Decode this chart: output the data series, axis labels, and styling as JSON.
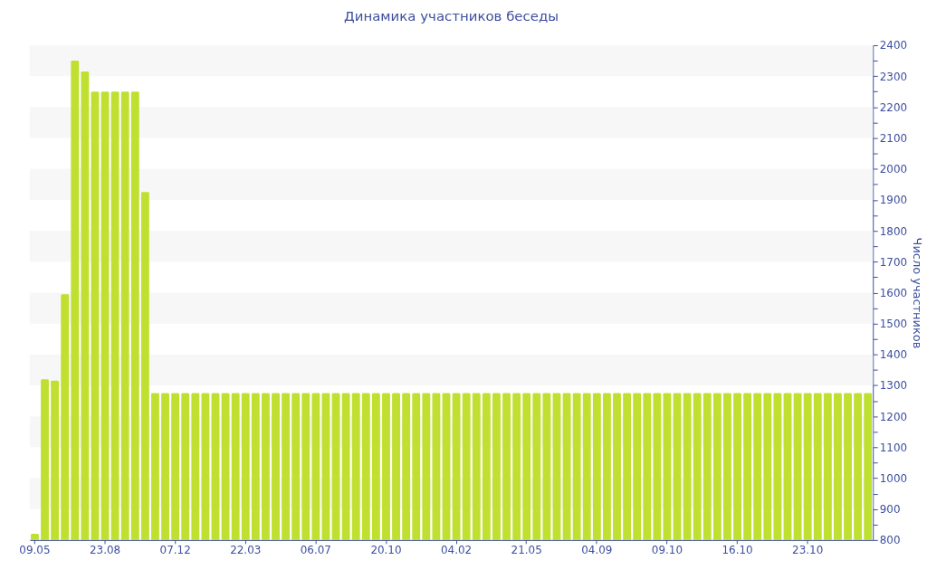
{
  "chart_data": {
    "type": "bar",
    "title": "Динамика участников беседы",
    "ylabel": "Число участников",
    "categories": [
      "09.05",
      null,
      null,
      null,
      null,
      null,
      null,
      "23.08",
      null,
      null,
      null,
      null,
      null,
      null,
      "07.12",
      null,
      null,
      null,
      null,
      null,
      null,
      "22.03",
      null,
      null,
      null,
      null,
      null,
      null,
      "06.07",
      null,
      null,
      null,
      null,
      null,
      null,
      "20.10",
      null,
      null,
      null,
      null,
      null,
      null,
      "04.02",
      null,
      null,
      null,
      null,
      null,
      null,
      "21.05",
      null,
      null,
      null,
      null,
      null,
      null,
      "04.09",
      null,
      null,
      null,
      null,
      null,
      null,
      "09.10",
      null,
      null,
      null,
      null,
      null,
      null,
      "16.10",
      null,
      null,
      null,
      null,
      null,
      null,
      "23.10",
      null,
      null,
      null,
      null,
      null,
      null
    ],
    "values": [
      820,
      1320,
      1315,
      1595,
      2350,
      2315,
      2250,
      2250,
      2250,
      2250,
      2250,
      1925,
      1275,
      1275,
      1275,
      1275,
      1275,
      1275,
      1275,
      1275,
      1275,
      1275,
      1275,
      1275,
      1275,
      1275,
      1275,
      1275,
      1275,
      1275,
      1275,
      1275,
      1275,
      1275,
      1275,
      1275,
      1275,
      1275,
      1275,
      1275,
      1275,
      1275,
      1275,
      1275,
      1275,
      1275,
      1275,
      1275,
      1275,
      1275,
      1275,
      1275,
      1275,
      1275,
      1275,
      1275,
      1275,
      1275,
      1275,
      1275,
      1275,
      1275,
      1275,
      1275,
      1275,
      1275,
      1275,
      1275,
      1275,
      1275,
      1275,
      1275,
      1275,
      1275,
      1275,
      1275,
      1275,
      1275,
      1275,
      1275,
      1275,
      1275,
      1275,
      1275
    ],
    "color": "#bfe030",
    "ylim": [
      800,
      2400
    ],
    "yticks": [
      800,
      {
        "value": 850,
        "label": null
      },
      900,
      {
        "value": 950,
        "label": null
      },
      1000,
      {
        "value": 1050,
        "label": null
      },
      1100,
      {
        "value": 1150,
        "label": null
      },
      1200,
      {
        "value": 1250,
        "label": null
      },
      1300,
      {
        "value": 1350,
        "label": null
      },
      1400,
      {
        "value": 1450,
        "label": null
      },
      1500,
      {
        "value": 1550,
        "label": null
      },
      1600,
      {
        "value": 1650,
        "label": null
      },
      1700,
      {
        "value": 1750,
        "label": null
      },
      1800,
      {
        "value": 1850,
        "label": null
      },
      1900,
      {
        "value": 1950,
        "label": null
      },
      2000,
      {
        "value": 2050,
        "label": null
      },
      2100,
      {
        "value": 2150,
        "label": null
      },
      2200,
      {
        "value": 2250,
        "label": null
      },
      2300,
      {
        "value": 2350,
        "label": null
      },
      2400
    ],
    "bands": [
      {
        "axis": "y",
        "from": 900,
        "to": 1000,
        "color": "#f7f7f7"
      },
      {
        "axis": "y",
        "from": 1100,
        "to": 1200,
        "color": "#f7f7f7"
      },
      {
        "axis": "y",
        "from": 1300,
        "to": 1400,
        "color": "#f7f7f7"
      },
      {
        "axis": "y",
        "from": 1500,
        "to": 1600,
        "color": "#f7f7f7"
      },
      {
        "axis": "y",
        "from": 1700,
        "to": 1800,
        "color": "#f7f7f7"
      },
      {
        "axis": "y",
        "from": 1900,
        "to": 2000,
        "color": "#f7f7f7"
      },
      {
        "axis": "y",
        "from": 2100,
        "to": 2200,
        "color": "#f7f7f7"
      },
      {
        "axis": "y",
        "from": 2300,
        "to": 2400,
        "color": "#f7f7f7"
      }
    ]
  }
}
